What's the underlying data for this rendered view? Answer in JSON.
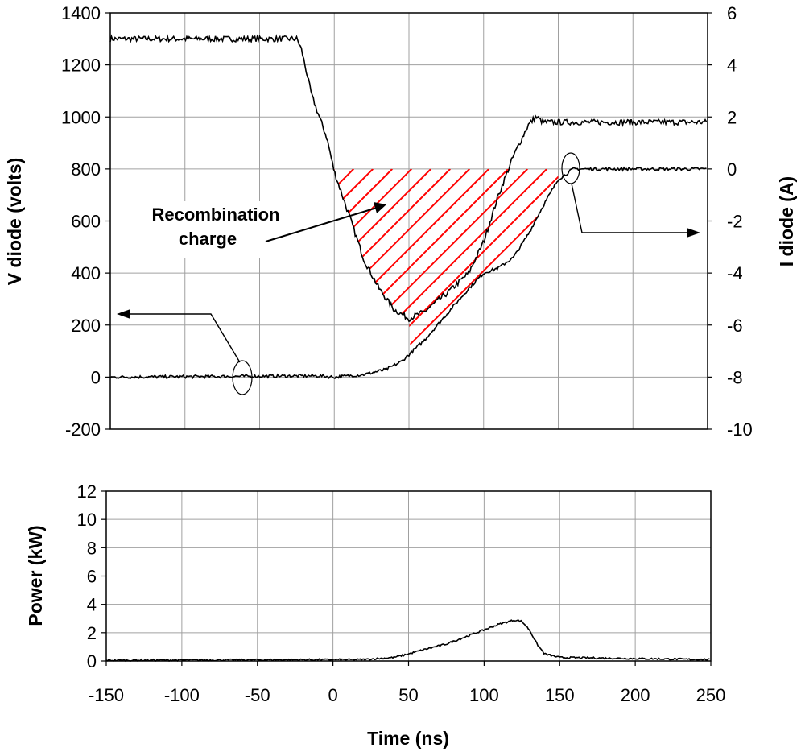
{
  "chart_data": [
    {
      "type": "line",
      "name": "diode-switching",
      "x": {
        "label": "Time (ns)",
        "lim": [
          -150,
          250
        ],
        "ticks": [
          -150,
          -100,
          -50,
          0,
          50,
          100,
          150,
          200,
          250
        ]
      },
      "y_left": {
        "label": "V diode (volts)",
        "lim": [
          -200,
          1400
        ],
        "ticks": [
          -200,
          0,
          200,
          400,
          600,
          800,
          1000,
          1200,
          1400
        ]
      },
      "y_right": {
        "label": "I diode (A)",
        "lim": [
          -10,
          6
        ],
        "ticks": [
          -10,
          -8,
          -6,
          -4,
          -2,
          0,
          2,
          4,
          6
        ]
      },
      "grid": true,
      "series": [
        {
          "name": "V diode",
          "axis": "left",
          "x": [
            -150,
            -25,
            -22,
            -15,
            -5,
            0,
            10,
            20,
            30,
            40,
            50,
            60,
            75,
            90,
            100,
            110,
            120,
            130,
            135,
            140,
            250
          ],
          "y": [
            1300,
            1300,
            1260,
            1080,
            920,
            790,
            620,
            450,
            340,
            260,
            225,
            250,
            320,
            400,
            520,
            700,
            850,
            970,
            1000,
            980,
            980
          ]
        },
        {
          "name": "I diode",
          "axis": "right",
          "x": [
            -150,
            -10,
            0,
            20,
            35,
            45,
            60,
            75,
            90,
            100,
            110,
            120,
            130,
            140,
            150,
            160,
            250
          ],
          "y": [
            -8.0,
            -7.95,
            -8.0,
            -7.9,
            -7.7,
            -7.4,
            -6.6,
            -5.6,
            -4.6,
            -4.0,
            -3.8,
            -3.4,
            -2.5,
            -1.4,
            -0.4,
            0.0,
            0.0
          ]
        }
      ],
      "annotations": [
        {
          "text": "Recombination",
          "target": "hatched area"
        },
        {
          "text": "charge",
          "target": "hatched area"
        }
      ]
    },
    {
      "type": "line",
      "name": "power",
      "x": {
        "label": "Time (ns)",
        "lim": [
          -150,
          250
        ],
        "ticks": [
          -150,
          -100,
          -50,
          0,
          50,
          100,
          150,
          200,
          250
        ]
      },
      "y": {
        "label": "Power (kW)",
        "lim": [
          0,
          12
        ],
        "ticks": [
          0,
          2,
          4,
          6,
          8,
          10,
          12
        ]
      },
      "grid": true,
      "series": [
        {
          "name": "Power",
          "x": [
            -150,
            20,
            40,
            50,
            60,
            75,
            90,
            100,
            110,
            120,
            125,
            130,
            135,
            140,
            150,
            250
          ],
          "y": [
            0.05,
            0.1,
            0.25,
            0.5,
            0.8,
            1.2,
            1.8,
            2.2,
            2.6,
            2.9,
            2.8,
            2.2,
            1.2,
            0.5,
            0.25,
            0.1
          ]
        }
      ]
    }
  ],
  "colors": {
    "trace": "#000000",
    "grid": "#a0a0a0",
    "hatch": "#ff0000"
  }
}
